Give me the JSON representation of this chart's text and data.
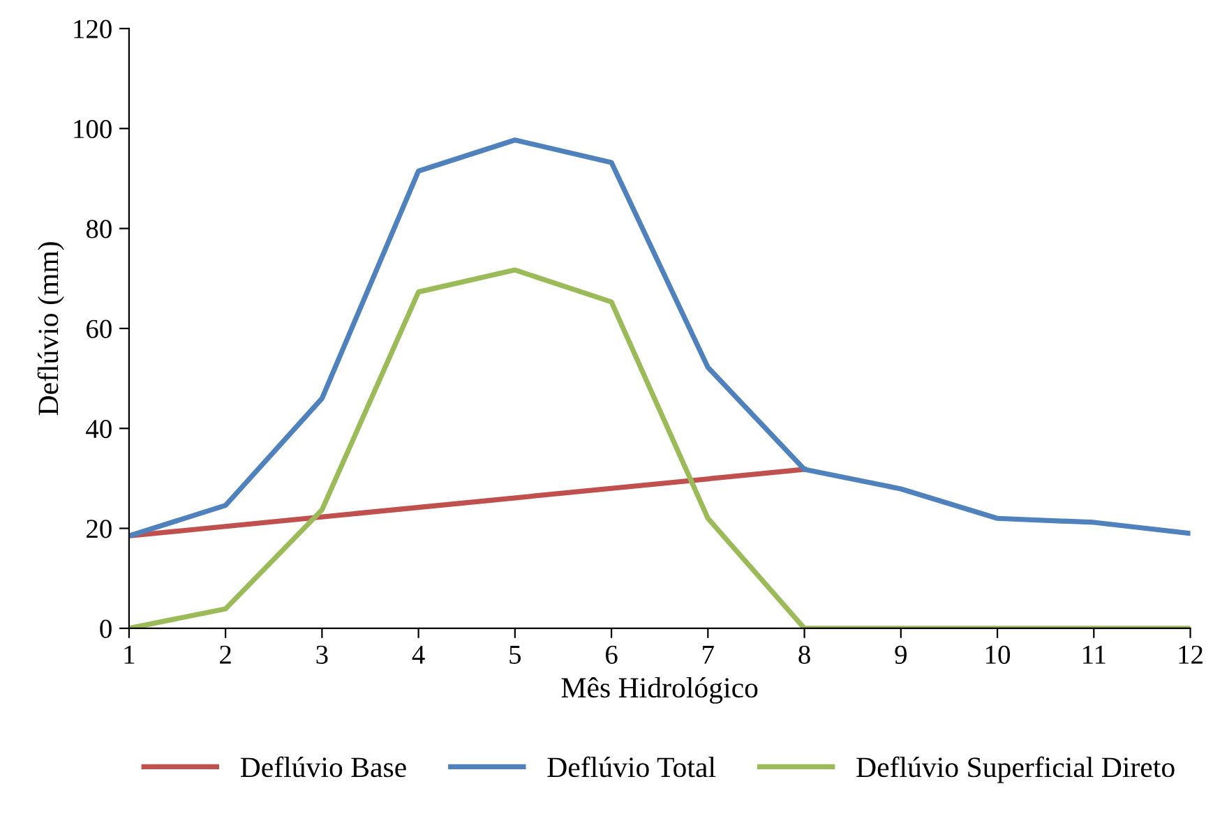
{
  "chart_data": {
    "type": "line",
    "xlabel": "Mês Hidrológico",
    "ylabel": "Deflúvio (mm)",
    "x": [
      1,
      2,
      3,
      4,
      5,
      6,
      7,
      8,
      9,
      10,
      11,
      12
    ],
    "series": [
      {
        "name": "Deflúvio Base",
        "color": "#c0504d",
        "x": [
          1,
          8
        ],
        "values": [
          18.5,
          31.8
        ]
      },
      {
        "name": "Deflúvio Total",
        "color": "#4f81bd",
        "values": [
          18.5,
          24.6,
          46,
          91.5,
          97.7,
          93.2,
          52.2,
          31.8,
          27.9,
          22,
          21.2,
          19
        ]
      },
      {
        "name": "Deflúvio Superficial Direto",
        "color": "#9bbb59",
        "values": [
          0,
          3.9,
          23.7,
          67.3,
          71.7,
          65.3,
          22,
          0,
          0,
          0,
          0,
          0
        ]
      }
    ],
    "xlim": [
      1,
      12
    ],
    "xticks": [
      1,
      2,
      3,
      4,
      5,
      6,
      7,
      8,
      9,
      10,
      11,
      12
    ],
    "ylim": [
      0,
      120
    ],
    "yticks": [
      0,
      20,
      40,
      60,
      80,
      100,
      120
    ],
    "grid": false,
    "legend": "bottom",
    "marker": "none",
    "line_style": "solid"
  }
}
